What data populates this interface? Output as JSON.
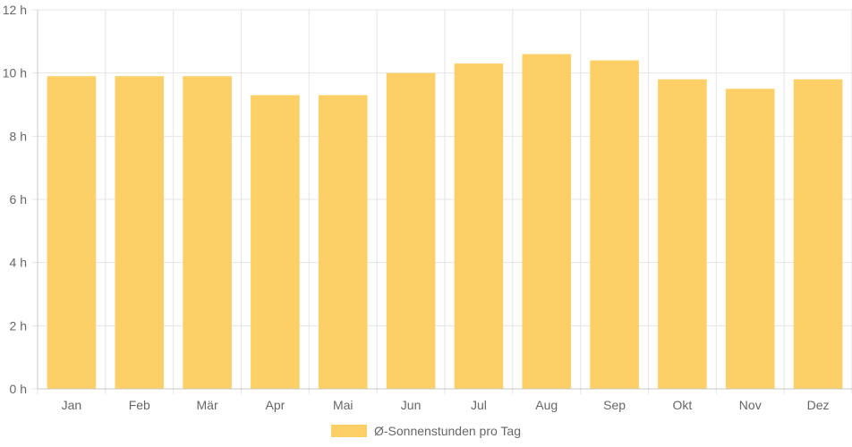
{
  "chart_data": {
    "type": "bar",
    "categories": [
      "Jan",
      "Feb",
      "Mär",
      "Apr",
      "Mai",
      "Jun",
      "Jul",
      "Aug",
      "Sep",
      "Okt",
      "Nov",
      "Dez"
    ],
    "series": [
      {
        "name": "Ø-Sonnenstunden pro Tag",
        "values": [
          9.9,
          9.9,
          9.9,
          9.3,
          9.3,
          10.0,
          10.3,
          10.6,
          10.4,
          9.8,
          9.5,
          9.8
        ]
      }
    ],
    "ylim": [
      0,
      12
    ],
    "yticks": [
      0,
      2,
      4,
      6,
      8,
      10,
      12
    ],
    "ytick_labels": [
      "0 h",
      "2 h",
      "4 h",
      "6 h",
      "8 h",
      "10 h",
      "12 h"
    ],
    "grid": true,
    "legend_position": "bottom",
    "colors": {
      "bar": "#fdd067",
      "grid": "#e5e5e5",
      "axis": "#c8c8c8",
      "text": "#666666"
    }
  }
}
